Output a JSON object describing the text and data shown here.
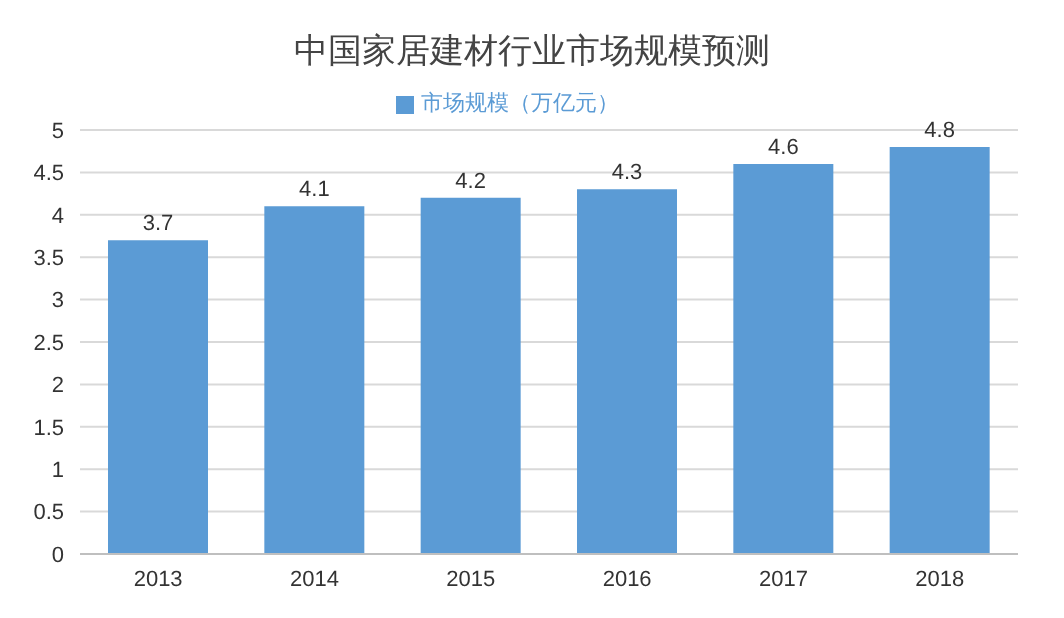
{
  "chart_data": {
    "type": "bar",
    "title": "中国家居建材行业市场规模预测",
    "categories": [
      "2013",
      "2014",
      "2015",
      "2016",
      "2017",
      "2018"
    ],
    "series": [
      {
        "name": "市场规模（万亿元）",
        "color": "#5b9bd5",
        "values": [
          3.7,
          4.1,
          4.2,
          4.3,
          4.6,
          4.8
        ]
      }
    ],
    "ylim": [
      0,
      5
    ],
    "yticks": [
      0,
      0.5,
      1,
      1.5,
      2,
      2.5,
      3,
      3.5,
      4,
      4.5,
      5
    ],
    "grid": "y",
    "legend": "top",
    "data_labels": true
  }
}
